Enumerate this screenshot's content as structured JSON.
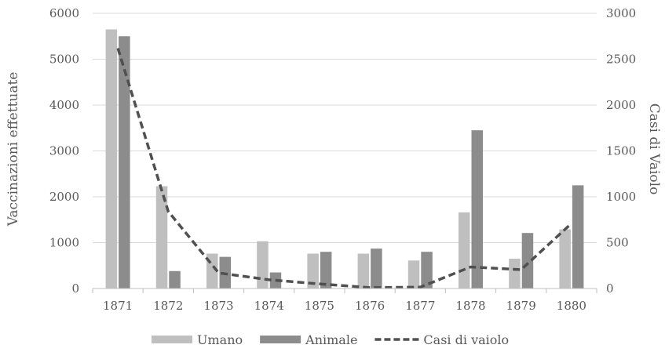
{
  "chart_data": {
    "type": "bar",
    "categories": [
      "1871",
      "1872",
      "1873",
      "1874",
      "1875",
      "1876",
      "1877",
      "1878",
      "1879",
      "1880"
    ],
    "series": [
      {
        "name": "Umano",
        "type": "bar",
        "axis": "left",
        "color": "#bfbfbf",
        "values": [
          5650,
          2230,
          760,
          1030,
          760,
          760,
          610,
          1660,
          650,
          1290
        ]
      },
      {
        "name": "Animale",
        "type": "bar",
        "axis": "left",
        "color": "#8c8c8c",
        "values": [
          5500,
          380,
          690,
          350,
          800,
          870,
          800,
          3450,
          1210,
          2250
        ]
      },
      {
        "name": "Casi di vaiolo",
        "type": "line",
        "axis": "right",
        "color": "#505050",
        "dash": "dashed",
        "values": [
          2620,
          840,
          170,
          95,
          50,
          10,
          15,
          235,
          205,
          710
        ]
      }
    ],
    "ylabel": "Vaccinazioni effettuate",
    "y2label": "Casi di Vaiolo",
    "ylim": [
      0,
      6000
    ],
    "y2lim": [
      0,
      3000
    ],
    "yticks": [
      "0",
      "1000",
      "2000",
      "3000",
      "4000",
      "5000",
      "6000"
    ],
    "y2ticks": [
      "0",
      "500",
      "1000",
      "1500",
      "2000",
      "2500",
      "3000"
    ],
    "grid": true,
    "legend": "bottom"
  }
}
